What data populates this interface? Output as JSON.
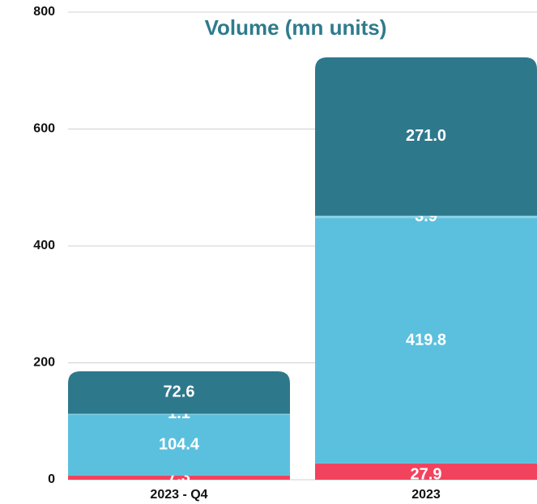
{
  "chart_data": {
    "type": "stacked_bar",
    "title": "Volume (mn units)",
    "categories": [
      "2023 - Q4",
      "2023"
    ],
    "series": [
      {
        "color": "#f2435e",
        "values": [
          7.3,
          27.9
        ]
      },
      {
        "color": "#5bc0de",
        "values": [
          104.4,
          419.8
        ]
      },
      {
        "color": "#8fd4e8",
        "values": [
          1.1,
          3.9
        ]
      },
      {
        "color": "#2e788c",
        "values": [
          72.6,
          271.0
        ],
        "value_labels": [
          "72.6",
          "271.0"
        ]
      }
    ],
    "ylim": [
      0,
      800
    ],
    "yticks": [
      0,
      200,
      400,
      600,
      800
    ],
    "grid": true
  }
}
